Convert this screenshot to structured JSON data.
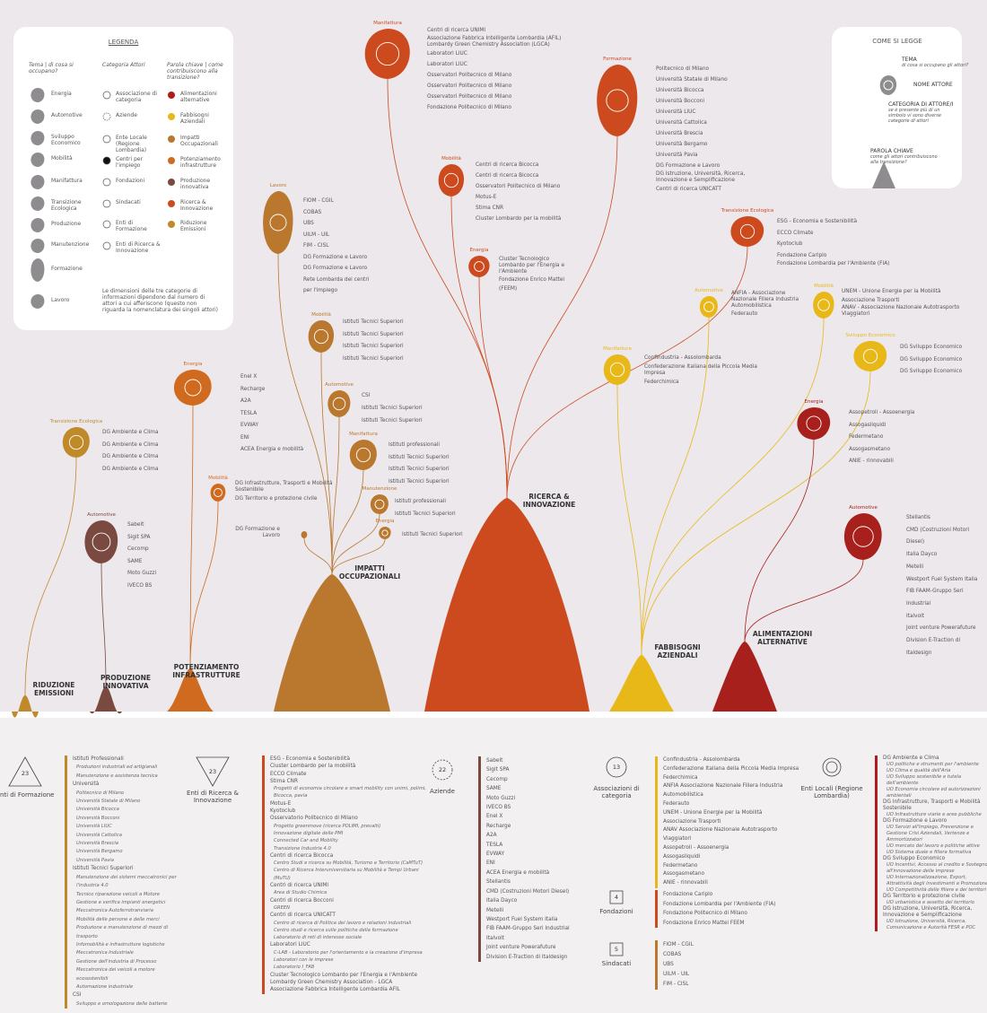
{
  "legend": {
    "title": "LEGENDA",
    "headers": [
      "Tema | di cosa si occupano?",
      "Categoria Attori",
      "Parola chiave | come contribuiscono alla transizione?"
    ],
    "themes": [
      "Energia",
      "Automotive",
      "Sviluppo Economico",
      "Mobilità",
      "Manifattura",
      "Transizione Ecologica",
      "Produzione",
      "Manutenzione",
      "Formazione",
      "Lavoro"
    ],
    "actors": [
      "Associazione di categoria",
      "Aziende",
      "Ente Locale (Regione Lombardia)",
      "Centri per l'impiego",
      "Fondazioni",
      "Sindacati",
      "Enti di Formazione",
      "Enti di Ricerca & Innovazione"
    ],
    "keywords": [
      {
        "name": "Alimentazioni alternative",
        "color": "#b01c1c"
      },
      {
        "name": "Fabbisogni Aziendali",
        "color": "#e8b818"
      },
      {
        "name": "Impatti Occupazionali",
        "color": "#b9782e"
      },
      {
        "name": "Potenziamento infrastrutture",
        "color": "#d06a1e"
      },
      {
        "name": "Produzione innovativa",
        "color": "#7a4a40"
      },
      {
        "name": "Ricerca & Innovazione",
        "color": "#cc4a1e"
      },
      {
        "name": "Riduzione Emissioni",
        "color": "#c08a2a"
      }
    ],
    "note": "Le dimensioni delle tre categorie di informazioni dipendono dal numero di attori a cui afferiscono (questo non riguarda la nomenclatura dei singoli attori)"
  },
  "how_to": {
    "title": "COME SI LEGGE",
    "items": [
      {
        "label": "TEMA",
        "desc": "di cosa si occupano gli attori?"
      },
      {
        "label": "NOME ATTORE"
      },
      {
        "label": "CATEGORIA DI ATTORE/I",
        "desc": "se è presente più di un simbolo vi sono diverse categorie di attori"
      },
      {
        "label": "PAROLA CHIAVE",
        "desc": "come gli attori contribuiscono alla transizione?"
      }
    ]
  },
  "mountains": [
    {
      "label": "RIDUZIONE EMISSIONI",
      "color": "#c08a2a"
    },
    {
      "label": "PRODUZIONE INNOVATIVA",
      "color": "#7a4a40"
    },
    {
      "label": "POTENZIAMENTO INFRASTRUTTURE",
      "color": "#d06a1e"
    },
    {
      "label": "IMPATTI OCCUPAZIONALI",
      "color": "#b9782e"
    },
    {
      "label": "RICERCA & INNOVAZIONE",
      "color": "#cc4a1e"
    },
    {
      "label": "FABBISOGNI AZIENDALI",
      "color": "#e8b818"
    },
    {
      "label": "ALIMENTAZIONI ALTERNATIVE",
      "color": "#a8201c"
    }
  ],
  "bubbles": [
    {
      "theme": "Manifattura",
      "color": "#cc4a1e",
      "items": [
        "Centri di ricerca UNIMI",
        "Associazione Fabbrica Intelligente Lombardia (AFIL)",
        "Lombardy Green Chemistry Association (LGCA)",
        "Laboratori LIUC",
        "Laboratori LIUC",
        "Osservatori Politecnico di Milano",
        "Osservatori Politecnico di Milano",
        "Osservatori Politecnico di Milano",
        "Fondazione Politecnico di Milano"
      ]
    },
    {
      "theme": "Formazione",
      "color": "#cc4a1e",
      "items": [
        "Politecnico di Milano",
        "Università Statale di Milano",
        "Università Bicocca",
        "Università Bocconi",
        "Università LIUC",
        "Università Cattolica",
        "Università Brescia",
        "Università Bergamo",
        "Università Pavia",
        "DG Formazione e Lavoro",
        "DG Istruzione, Università, Ricerca, Innovazione e Semplificazione",
        "Centri di ricerca UNICATT"
      ]
    },
    {
      "theme": "Mobilità",
      "color": "#cc4a1e",
      "items": [
        "Centri di ricerca Bicocca",
        "Centri di ricerca Bicocca",
        "Osservatori Politecnico di Milano",
        "Motus-E",
        "Stima CNR",
        "Cluster Lombardo per la mobilità"
      ]
    },
    {
      "theme": "Energia",
      "color": "#cc4a1e",
      "items": [
        "Cluster Tecnologico Lombardo per l'Energia e l'Ambiente",
        "Fondazione Enrico Mattei (FEEM)"
      ]
    },
    {
      "theme": "Transizione Ecologica",
      "color": "#cc4a1e",
      "items": [
        "ESG - Economia e Sostenibilità",
        "ECCO Climate",
        "Kyotoclub",
        "Fondazione Cariplo",
        "Fondazione Lombardia per l'Ambiente (FIA)"
      ]
    },
    {
      "theme": "Lavoro",
      "color": "#b9782e",
      "items": [
        "FIOM - CGIL",
        "COBAS",
        "UBS",
        "UILM - UIL",
        "FIM - CISL",
        "DG Formazione e Lavoro",
        "DG Formazione e Lavoro",
        "Rete Lombarda dei centri per l'impiego"
      ]
    },
    {
      "theme": "Mobilità",
      "color": "#b9782e",
      "items": [
        "Istituti Tecnici Superiori",
        "Istituti Tecnici Superiori",
        "Istituti Tecnici Superiori",
        "Istituti Tecnici Superiori"
      ]
    },
    {
      "theme": "Automotive",
      "color": "#b9782e",
      "items": [
        "CSI",
        "Istituti Tecnici Superiori",
        "Istituti Tecnici Superiori"
      ]
    },
    {
      "theme": "Manifattura",
      "color": "#b9782e",
      "items": [
        "Istituti professionali",
        "Istituti Tecnici Superiori",
        "Istituti Tecnici Superiori",
        "Istituti Tecnici Superiori"
      ]
    },
    {
      "theme": "Manutenzione",
      "color": "#b9782e",
      "items": [
        "Istituti professionali",
        "Istituti Tecnici Superiori"
      ]
    },
    {
      "theme": "Energia",
      "color": "#b9782e",
      "items": [
        "Istituti Tecnici Superiori"
      ]
    },
    {
      "theme": "Lavoro",
      "color": "#b9782e",
      "items": [
        "DG Formazione e Lavoro"
      ]
    },
    {
      "theme": "Energia",
      "color": "#d06a1e",
      "items": [
        "Enel X",
        "Recharge",
        "A2A",
        "TESLA",
        "EVWAY",
        "ENI",
        "ACEA Energia e mobilità"
      ]
    },
    {
      "theme": "Mobilità",
      "color": "#d06a1e",
      "items": [
        "DG Infrastrutture, Trasporti e Mobilità Sostenibile",
        "DG Territorio e protezione civile"
      ]
    },
    {
      "theme": "Transizione Ecologica",
      "color": "#c08a2a",
      "items": [
        "DG Ambiente e Clima",
        "DG Ambiente e Clima",
        "DG Ambiente e Clima",
        "DG Ambiente e Clima"
      ]
    },
    {
      "theme": "Automotive",
      "color": "#7a4a40",
      "items": [
        "Sabelt",
        "Sigit SPA",
        "Cecomp",
        "SAME",
        "Moto Guzzi",
        "IVECO BS"
      ]
    },
    {
      "theme": "Automotive",
      "color": "#e8b818",
      "items": [
        "ANFIA - Associazione Nazionale Filiera Industria Automobilistica",
        "Federauto"
      ]
    },
    {
      "theme": "Mobilità",
      "color": "#e8b818",
      "items": [
        "UNEM - Unione Energie per la Mobilità",
        "Associazione Trasporti",
        "ANAV - Associazione Nazionale Autotrasporto Viaggiatori"
      ]
    },
    {
      "theme": "Manifattura",
      "color": "#e8b818",
      "items": [
        "Confindustria - Assolombarda",
        "Confederazione Italiana della Piccola Media Impresa",
        "Federchimica"
      ]
    },
    {
      "theme": "Sviluppo Economico",
      "color": "#e8b818",
      "items": [
        "DG Sviluppo Economico",
        "DG Sviluppo Economico",
        "DG Sviluppo Economico"
      ]
    },
    {
      "theme": "Energia",
      "color": "#a8201c",
      "items": [
        "Assopetroli - Assoenergia",
        "Assogasliquidi",
        "Federmetano",
        "Assogasmetano",
        "ANIE - rinnovabili"
      ]
    },
    {
      "theme": "Automotive",
      "color": "#a8201c",
      "items": [
        "Stellantis",
        "CMD (Costruzioni Motori Diesel)",
        "Italia Dayco",
        "Metelli",
        "Westport Fuel System Italia",
        "FIB FAAM-Gruppo Seri Industrial",
        "Italvolt",
        "Joint venture Powerafuture",
        "Division E-Traction di Italdesign"
      ]
    }
  ],
  "groups": [
    {
      "count": "23",
      "label": "Enti di Formazione",
      "items": [
        {
          "name": "Istituti Professionali",
          "sub": [
            "Produzioni industriali ed artigianali",
            "Manutenzione e assistenza tecnica"
          ]
        },
        {
          "name": "Università",
          "sub": [
            "Politecnico di Milano",
            "Università Statale di Milano",
            "Università Bicocca",
            "Università Bocconi",
            "Università LIUC",
            "Università Cattolica",
            "Università Brescia",
            "Università Bergamo",
            "Università Pavia"
          ]
        },
        {
          "name": "Istituti Tecnici Superiori",
          "sub": [
            "Manutenzione dei sistemi meccatronici per l'industria 4.0",
            "Tecnico riparazione veicoli a Motore",
            "Gestione e verifica impianti energetici",
            "Meccatronica Autoferrotranviaria",
            "Mobilità delle persone e delle merci",
            "Produzione e manutenzione di mezzi di trasporto",
            "Infomobilità e infrastrutture logistiche",
            "Meccatronica Industriale",
            "Gestione dell'industria di Processo",
            "Meccatronica dei veicoli a motore ecosostenibili",
            "Automazione industriale"
          ]
        },
        {
          "name": "CSI",
          "sub": [
            "Sviluppo e omologazione delle batterie"
          ]
        }
      ]
    },
    {
      "count": "23",
      "label": "Enti di Ricerca & Innovazione",
      "items": [
        "ESG - Economia e Sostenibilità",
        "Cluster Lombardo per la mobilità",
        "ECCO Climate",
        {
          "name": "Stima CNR",
          "sub": [
            "Progetti di economia circolare e smart mobility con unimi, polimi, Bicocca, pavia"
          ]
        },
        "Motus-E",
        "Kyotoclub",
        {
          "name": "Osservatorio Politecnico di Milano",
          "sub": [
            "Progetto greenmove (ricerca POLIMI, prevalti)",
            "Innovazione digitale delle PMI",
            "Connected Car and Mobility",
            "Transizione Industria 4.0"
          ]
        },
        {
          "name": "Centri di ricerca Bicocca",
          "sub": [
            "Centro Studi e ricerca su Mobilità, Turismo e Territorio (CaMTuT)",
            "Centro di Ricerca Interuniversitaria su Mobilità e Tempi Urbani (MuTU)"
          ]
        },
        {
          "name": "Centri di ricerca UNIMI",
          "sub": [
            "Area di Studio Chimica"
          ]
        },
        {
          "name": "Centri di ricerca Bocconi",
          "sub": [
            "GREEN"
          ]
        },
        {
          "name": "Centri di ricerca UNICATT",
          "sub": [
            "Centro di ricerca di Politica del lavoro e relazioni industriali",
            "Centro studi e ricerca sulle politiche della formazione",
            "Laboratorio di reti di interesse sociale"
          ]
        },
        {
          "name": "Laboratori LIUC",
          "sub": [
            "C-LAB - Laboratorio per l'orientamento e la creazione d'impresa",
            "Laboratori con le imprese",
            "Laboratorio I_FAB"
          ]
        },
        "Cluster Tecnologico Lombardo per l'Energia e l'Ambiente",
        "Lombardy Green Chemistry Association - LGCA",
        "Associazione Fabbrica Intelligente Lombardia AFIL"
      ]
    },
    {
      "count": "22",
      "label": "Aziende",
      "items": [
        "Sabelt",
        "Sigit SPA",
        "Cecomp",
        "SAME",
        "Moto Guzzi",
        "IVECO BS",
        "Enel X",
        "Recharge",
        "A2A",
        "TESLA",
        "EVWAY",
        "ENI",
        "ACEA Energia e mobilità",
        "Stellantis",
        "CMD (Costruzioni Motori Diesel)",
        "Italia Dayco",
        "Metelli",
        "Westport Fuel System Italia",
        "FIB FAAM-Gruppo Seri Industrial",
        "Italvolt",
        "Joint venture Powerafuture",
        "Division E-Traction di Italdesign"
      ]
    },
    {
      "count": "13",
      "label": "Associazioni di categoria",
      "items": [
        "Confindustria - Assolombarda",
        "Confederazione Italiana della Piccola Media Impresa",
        "Federchimica",
        "ANFIA Associazione Nazionale Filiera Industria Automobilistica",
        "Federauto",
        "UNEM - Unione Energie per la Mobilità",
        "Associazione Trasporti",
        "ANAV Associazione Nazionale Autotrasporto Viaggiatori",
        "Assopetroli - Assoenergia",
        "Assogasliquidi",
        "Federmetano",
        "Assogasmetano",
        "ANIE - rinnovabili"
      ]
    },
    {
      "count": "4",
      "label": "Fondazioni",
      "items": [
        "Fondazione Cariplo",
        "Fondazione Lombardia per l'Ambiente (FIA)",
        "Fondazione Politecnico di Milano",
        "Fondazione Enrico Mattei FEEM"
      ]
    },
    {
      "count": "5",
      "label": "Sindacati",
      "items": [
        "FIOM - CGIL",
        "COBAS",
        "UBS",
        "UILM - UIL",
        "FIM - CISL"
      ]
    },
    {
      "label": "Enti Locali (Regione Lombardia)",
      "items": [
        {
          "name": "DG Ambiente e Clima",
          "sub": [
            "UO politiche e strumenti per l'ambiente",
            "UO Clima e qualità dell'Aria",
            "UO Sviluppo sostenibile e tutela dell'ambiente",
            "UO Economia circolare ed autorizzazioni ambientali"
          ]
        },
        {
          "name": "DG Infrastrutture, Trasporti e Mobilità Sostenibile",
          "sub": [
            "UO Infrastrutture viarie e aree pubbliche"
          ]
        },
        {
          "name": "DG Formazione e Lavoro",
          "sub": [
            "UO Servizi all'Impiego, Prevenzione e Gestione Crisi Aziendali, Vertenze e Ammortizzatori",
            "UO mercato del lavoro e politiche attive",
            "UO Sistema duale e filiera formativa"
          ]
        },
        {
          "name": "DG Sviluppo Economico",
          "sub": [
            "UO Incentivi, Accesso al credito e Sostegno all'innovazione delle imprese",
            "UO Internazionalizzazione, Export, Attrattività degli investimenti e Promozione",
            "UO Competitività delle filiere e dei territori"
          ]
        },
        {
          "name": "DG Territorio e protezione civile",
          "sub": [
            "UO urbanistica e assetto del territorio"
          ]
        },
        {
          "name": "DG Istruzione, Università, Ricerca, Innovazione e Semplificazione",
          "sub": [
            "UO Istruzione, Università, Ricerca, Comunicazione e Autorità FESR e POC"
          ]
        }
      ]
    }
  ]
}
